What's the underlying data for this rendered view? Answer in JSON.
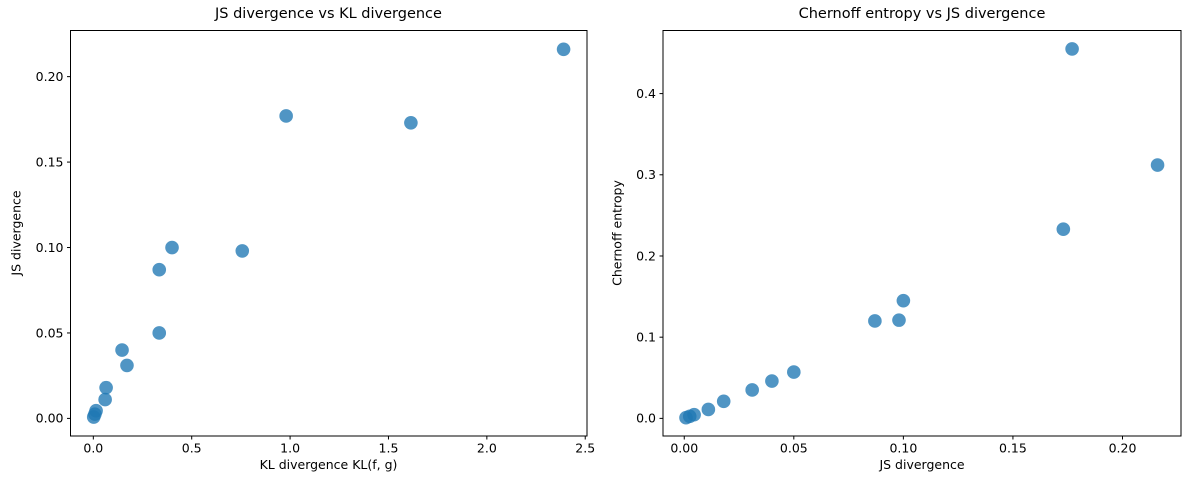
{
  "figure": {
    "background": "#ffffff",
    "text_color": "#000000",
    "spine_color": "#000000",
    "marker_color": "#1f77b4",
    "marker_alpha": 0.78
  },
  "chart_data": [
    {
      "type": "scatter",
      "title": "JS divergence vs KL divergence",
      "xlabel": "KL divergence KL(f, g)",
      "ylabel": "JS divergence",
      "x": [
        0.002,
        0.008,
        0.014,
        0.06,
        0.065,
        0.146,
        0.171,
        0.335,
        0.335,
        0.4,
        0.757,
        0.98,
        1.614,
        2.39
      ],
      "y": [
        0.0008,
        0.0025,
        0.0045,
        0.011,
        0.018,
        0.04,
        0.031,
        0.05,
        0.087,
        0.1,
        0.098,
        0.177,
        0.173,
        0.216
      ],
      "xlim": [
        -0.116,
        2.509
      ],
      "ylim": [
        -0.0103,
        0.227
      ],
      "xticks": [
        0.0,
        0.5,
        1.0,
        1.5,
        2.0,
        2.5
      ],
      "xtick_labels": [
        "0.0",
        "0.5",
        "1.0",
        "1.5",
        "2.0",
        "2.5"
      ],
      "yticks": [
        0.0,
        0.05,
        0.1,
        0.15,
        0.2
      ],
      "ytick_labels": [
        "0.00",
        "0.05",
        "0.10",
        "0.15",
        "0.20"
      ],
      "grid": false,
      "legend": null
    },
    {
      "type": "scatter",
      "title": "Chernoff entropy vs JS divergence",
      "xlabel": "JS divergence",
      "ylabel": "Chernoff entropy",
      "x": [
        0.0008,
        0.0025,
        0.0045,
        0.011,
        0.018,
        0.031,
        0.04,
        0.05,
        0.087,
        0.098,
        0.1,
        0.173,
        0.177,
        0.216
      ],
      "y": [
        0.0008,
        0.0025,
        0.0045,
        0.011,
        0.021,
        0.035,
        0.046,
        0.057,
        0.12,
        0.121,
        0.145,
        0.233,
        0.455,
        0.312
      ],
      "xlim": [
        -0.0097,
        0.2267
      ],
      "ylim": [
        -0.0217,
        0.4777
      ],
      "xticks": [
        0.0,
        0.05,
        0.1,
        0.15,
        0.2
      ],
      "xtick_labels": [
        "0.00",
        "0.05",
        "0.10",
        "0.15",
        "0.20"
      ],
      "yticks": [
        0.0,
        0.1,
        0.2,
        0.3,
        0.4
      ],
      "ytick_labels": [
        "0.0",
        "0.1",
        "0.2",
        "0.3",
        "0.4"
      ],
      "grid": false,
      "legend": null
    }
  ]
}
